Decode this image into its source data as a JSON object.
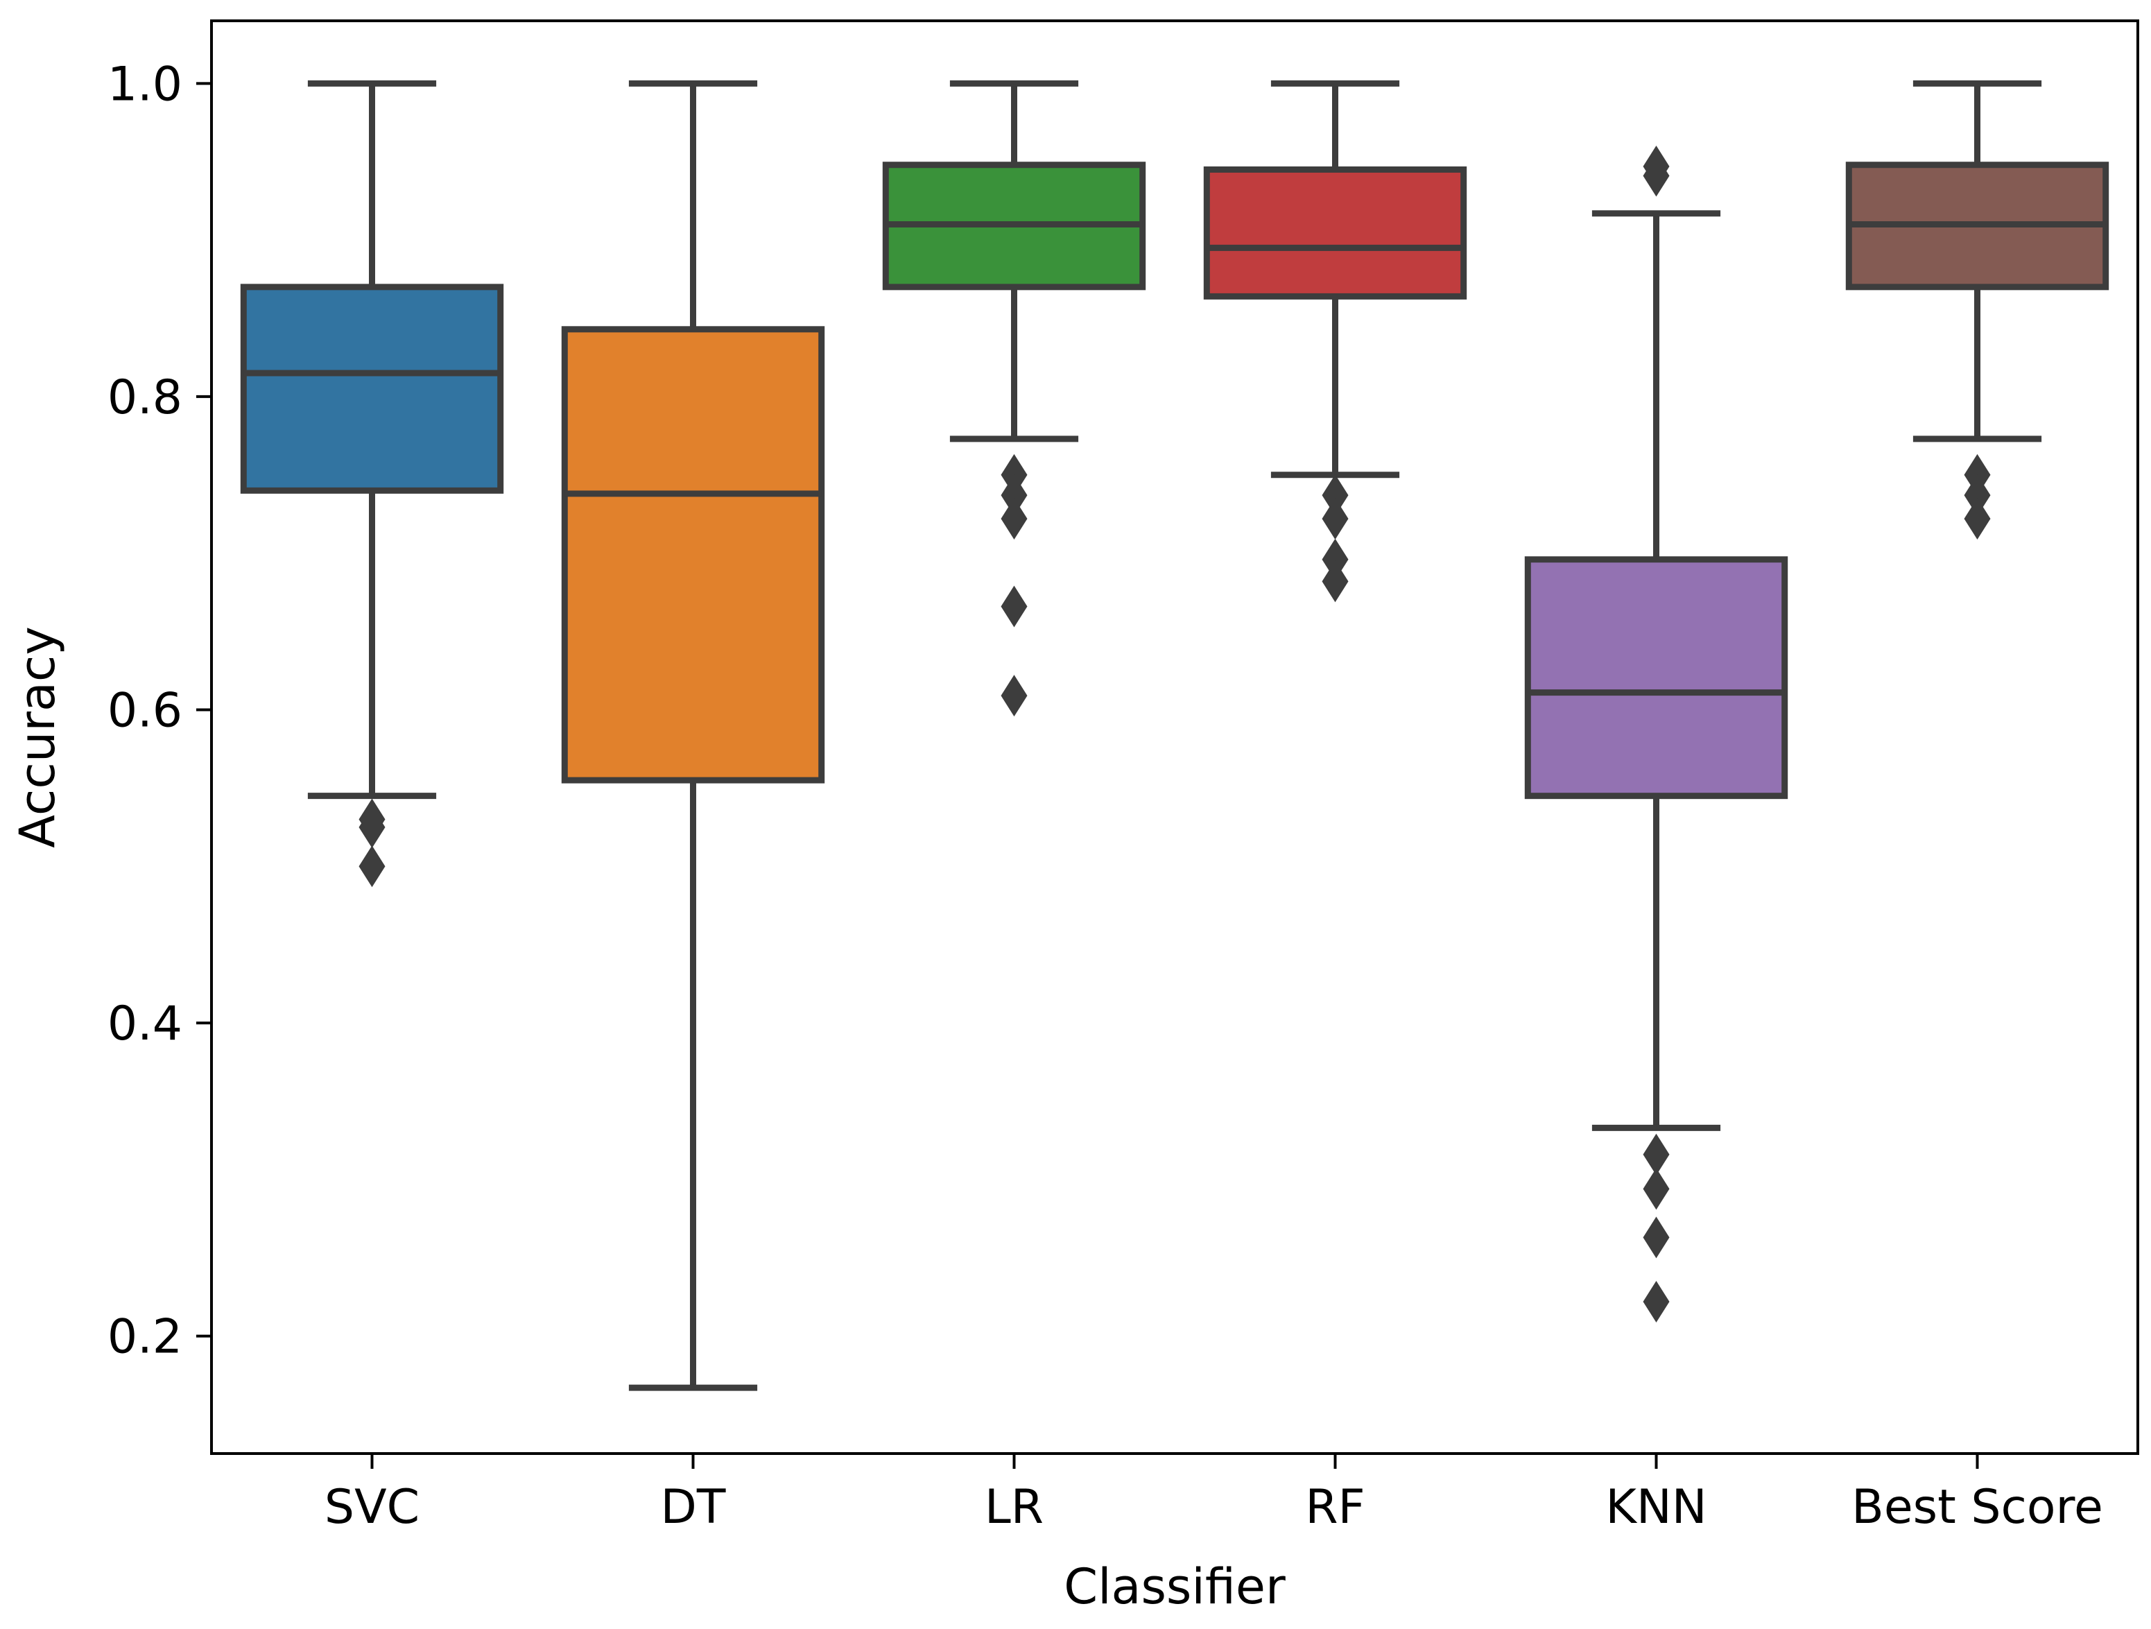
{
  "chart_data": {
    "type": "box",
    "xlabel": "Classifier",
    "ylabel": "Accuracy",
    "ylim": [
      0.125,
      1.04
    ],
    "yticks": [
      0.2,
      0.4,
      0.6,
      0.8,
      1.0
    ],
    "ytick_labels": [
      "0.2",
      "0.4",
      "0.6",
      "0.8",
      "1.0"
    ],
    "grid": false,
    "categories": [
      "SVC",
      "DT",
      "LR",
      "RF",
      "KNN",
      "Best Score"
    ],
    "colors": [
      "#3274a1",
      "#e1812c",
      "#3a923a",
      "#c03d3e",
      "#9372b2",
      "#845b53"
    ],
    "box_edge_color": "#3d3d3d",
    "boxes": [
      {
        "name": "SVC",
        "whisker_low": 0.545,
        "q1": 0.74,
        "median": 0.815,
        "q3": 0.87,
        "whisker_high": 1.0,
        "outliers": [
          0.53,
          0.525,
          0.5
        ]
      },
      {
        "name": "DT",
        "whisker_low": 0.167,
        "q1": 0.555,
        "median": 0.738,
        "q3": 0.843,
        "whisker_high": 1.0,
        "outliers": []
      },
      {
        "name": "LR",
        "whisker_low": 0.773,
        "q1": 0.87,
        "median": 0.91,
        "q3": 0.948,
        "whisker_high": 1.0,
        "outliers": [
          0.75,
          0.737,
          0.722,
          0.666,
          0.609
        ]
      },
      {
        "name": "RF",
        "whisker_low": 0.75,
        "q1": 0.864,
        "median": 0.895,
        "q3": 0.945,
        "whisker_high": 1.0,
        "outliers": [
          0.737,
          0.722,
          0.696,
          0.682
        ]
      },
      {
        "name": "KNN",
        "whisker_low": 0.333,
        "q1": 0.545,
        "median": 0.611,
        "q3": 0.696,
        "whisker_high": 0.917,
        "outliers": [
          0.947,
          0.941,
          0.316,
          0.294,
          0.263,
          0.222
        ]
      },
      {
        "name": "Best Score",
        "whisker_low": 0.773,
        "q1": 0.87,
        "median": 0.91,
        "q3": 0.948,
        "whisker_high": 1.0,
        "outliers": [
          0.75,
          0.737,
          0.722
        ]
      }
    ]
  }
}
